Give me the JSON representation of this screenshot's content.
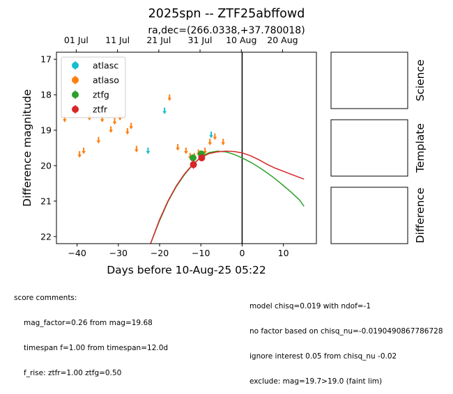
{
  "chart_data": {
    "type": "scatter",
    "title": "2025spn -- ZTF25abffowd",
    "subtitle": "ra,dec=(266.0338,+37.780018)",
    "xlabel": "Days before 10-Aug-25 05:22",
    "ylabel": "Difference magnitude",
    "xlim": [
      -45,
      18
    ],
    "ylim": [
      22.2,
      16.8
    ],
    "y_inverted": true,
    "x_ticks": [
      -40,
      -30,
      -20,
      -10,
      0,
      10
    ],
    "x_tick_labels": [
      "−40",
      "−30",
      "−20",
      "−10",
      "0",
      "10"
    ],
    "y_ticks": [
      17,
      18,
      19,
      20,
      21,
      22
    ],
    "y_tick_labels": [
      "17",
      "18",
      "19",
      "20",
      "21",
      "22"
    ],
    "top_axis_ticks": [
      {
        "x": -40.2,
        "label": "01 Jul"
      },
      {
        "x": -30.2,
        "label": "11 Jul"
      },
      {
        "x": -20.2,
        "label": "21 Jul"
      },
      {
        "x": -10.2,
        "label": "31 Jul"
      },
      {
        "x": -0.2,
        "label": "10 Aug"
      },
      {
        "x": 9.8,
        "label": "20 Aug"
      }
    ],
    "grid": false,
    "legend_position": "top-left",
    "vertical_line_x": 0,
    "series": [
      {
        "name": "atlasc",
        "color": "#17becf",
        "kind": "upper_limit",
        "points": [
          [
            -22.8,
            19.55
          ],
          [
            -18.8,
            18.42
          ],
          [
            -7.5,
            19.1
          ]
        ]
      },
      {
        "name": "atlaso",
        "color": "#ff7f0e",
        "kind": "upper_limit",
        "points": [
          [
            -43.0,
            18.65
          ],
          [
            -39.4,
            19.65
          ],
          [
            -38.4,
            19.55
          ],
          [
            -37.0,
            18.6
          ],
          [
            -34.8,
            19.25
          ],
          [
            -33.9,
            18.65
          ],
          [
            -31.8,
            18.95
          ],
          [
            -30.9,
            18.72
          ],
          [
            -29.6,
            18.6
          ],
          [
            -27.8,
            19.0
          ],
          [
            -26.9,
            18.85
          ],
          [
            -25.6,
            19.5
          ],
          [
            -17.6,
            18.05
          ],
          [
            -15.6,
            19.45
          ],
          [
            -13.6,
            19.55
          ],
          [
            -12.6,
            19.7
          ],
          [
            -11.6,
            19.7
          ],
          [
            -10.6,
            19.6
          ],
          [
            -9.0,
            19.55
          ],
          [
            -7.8,
            19.3
          ],
          [
            -6.6,
            19.15
          ],
          [
            -4.6,
            19.3
          ]
        ]
      },
      {
        "name": "ztfg",
        "color": "#2ca02c",
        "kind": "detection",
        "points": [
          [
            -11.9,
            19.78,
            0.05
          ],
          [
            -9.9,
            19.67,
            0.05
          ]
        ]
      },
      {
        "name": "ztfr",
        "color": "#d62728",
        "kind": "detection",
        "points": [
          [
            -11.8,
            19.97,
            0.12
          ],
          [
            -9.8,
            19.78,
            0.08
          ]
        ]
      }
    ],
    "model_curves": [
      {
        "band": "ztfg",
        "color": "#2ca02c",
        "points": [
          [
            -22.2,
            22.2
          ],
          [
            -20.0,
            21.55
          ],
          [
            -18.0,
            21.02
          ],
          [
            -16.0,
            20.6
          ],
          [
            -14.0,
            20.26
          ],
          [
            -12.0,
            19.98
          ],
          [
            -10.0,
            19.76
          ],
          [
            -8.0,
            19.63
          ],
          [
            -6.0,
            19.59
          ],
          [
            -4.0,
            19.61
          ],
          [
            -2.0,
            19.68
          ],
          [
            0.0,
            19.78
          ],
          [
            2.0,
            19.9
          ],
          [
            4.0,
            20.04
          ],
          [
            6.0,
            20.2
          ],
          [
            8.0,
            20.37
          ],
          [
            10.0,
            20.56
          ],
          [
            12.0,
            20.76
          ],
          [
            14.0,
            20.98
          ],
          [
            15.0,
            21.15
          ]
        ]
      },
      {
        "band": "ztfr",
        "color": "#d62728",
        "points": [
          [
            -22.2,
            22.2
          ],
          [
            -20.0,
            21.52
          ],
          [
            -18.0,
            21.0
          ],
          [
            -16.0,
            20.58
          ],
          [
            -14.0,
            20.24
          ],
          [
            -12.0,
            19.97
          ],
          [
            -10.0,
            19.77
          ],
          [
            -8.0,
            19.66
          ],
          [
            -6.0,
            19.61
          ],
          [
            -4.0,
            19.59
          ],
          [
            -2.0,
            19.6
          ],
          [
            0.0,
            19.64
          ],
          [
            2.0,
            19.72
          ],
          [
            4.0,
            19.83
          ],
          [
            6.0,
            19.96
          ],
          [
            8.0,
            20.07
          ],
          [
            10.0,
            20.16
          ],
          [
            12.0,
            20.25
          ],
          [
            15.0,
            20.38
          ]
        ]
      }
    ],
    "side_panels": [
      "Science",
      "Template",
      "Difference"
    ]
  },
  "comments": {
    "left": [
      "score comments:",
      "mag_factor=0.26 from mag=19.68",
      "timespan f=1.00 from timespan=12.0d",
      "f_rise: ztfr=1.00 ztfg=0.50"
    ],
    "right": [
      "model chisq=0.019 with ndof=-1",
      "no factor based on chisq_nu=-0.0190490867786728",
      "ignore interest 0.05 from chisq_nu -0.02",
      "exclude: mag=19.7>19.0 (faint lim)"
    ]
  }
}
